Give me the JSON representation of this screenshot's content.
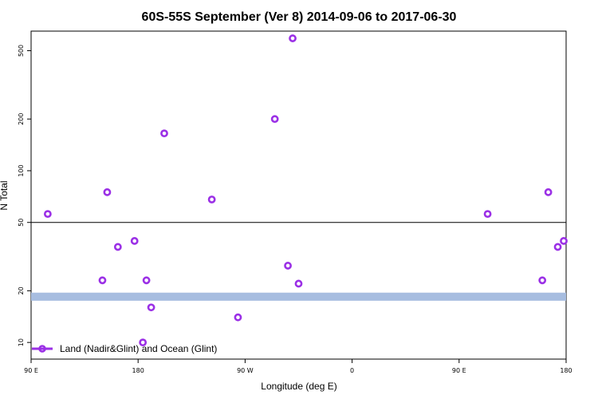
{
  "chart_data": {
    "type": "scatter",
    "title": "60S-55S September (Ver 8)   2014-09-06 to 2017-06-30",
    "xlabel": "Longitude (deg E)",
    "ylabel": "N Total",
    "x_scale": "linear",
    "y_scale": "log",
    "xlim": [
      90,
      540
    ],
    "ylim": [
      8,
      650
    ],
    "x_ticks": [
      {
        "value": 90,
        "label": "90 E"
      },
      {
        "value": 180,
        "label": "180"
      },
      {
        "value": 270,
        "label": "90 W"
      },
      {
        "value": 360,
        "label": "0"
      },
      {
        "value": 450,
        "label": "90 E"
      },
      {
        "value": 540,
        "label": "180"
      }
    ],
    "y_ticks": [
      {
        "value": 10,
        "label": "10"
      },
      {
        "value": 20,
        "label": "20"
      },
      {
        "value": 50,
        "label": "50"
      },
      {
        "value": 100,
        "label": "100"
      },
      {
        "value": 200,
        "label": "200"
      },
      {
        "value": 500,
        "label": "500"
      }
    ],
    "reference_line": {
      "y": 50,
      "color": "#000000"
    },
    "band": {
      "y_min": 17.5,
      "y_max": 19.5,
      "color": "#a7bde0"
    },
    "series": [
      {
        "name": "Land (Nadir&Glint) and Ocean (Glint)",
        "color": "#9b30e6",
        "points": [
          {
            "x": 104,
            "y": 56
          },
          {
            "x": 150,
            "y": 23
          },
          {
            "x": 154,
            "y": 75
          },
          {
            "x": 163,
            "y": 36
          },
          {
            "x": 177,
            "y": 39
          },
          {
            "x": 184,
            "y": 10
          },
          {
            "x": 187,
            "y": 23
          },
          {
            "x": 191,
            "y": 16
          },
          {
            "x": 202,
            "y": 165
          },
          {
            "x": 242,
            "y": 68
          },
          {
            "x": 264,
            "y": 14
          },
          {
            "x": 295,
            "y": 200
          },
          {
            "x": 310,
            "y": 590
          },
          {
            "x": 306,
            "y": 28
          },
          {
            "x": 315,
            "y": 22
          },
          {
            "x": 474,
            "y": 56
          },
          {
            "x": 520,
            "y": 23
          },
          {
            "x": 525,
            "y": 75
          },
          {
            "x": 533,
            "y": 36
          },
          {
            "x": 538,
            "y": 39
          }
        ]
      }
    ],
    "legend": {
      "position": "bottom-left"
    }
  }
}
